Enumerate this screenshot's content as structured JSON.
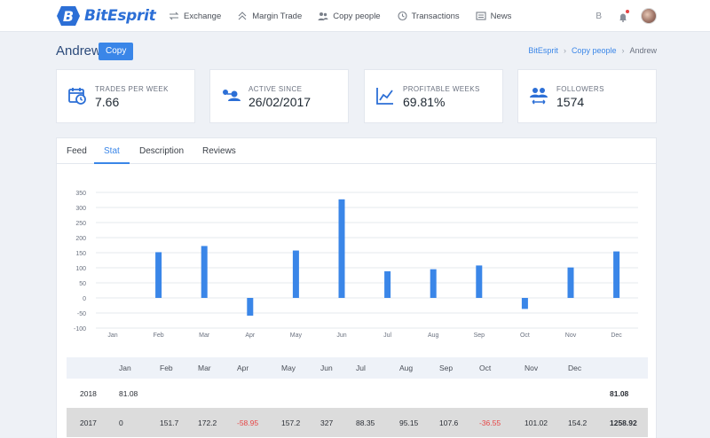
{
  "brand": {
    "name": "BitEsprit",
    "color": "#2c6fd6"
  },
  "nav": [
    {
      "label": "Exchange",
      "icon": "exchange-icon"
    },
    {
      "label": "Margin Trade",
      "icon": "margin-trade-icon"
    },
    {
      "label": "Copy people",
      "icon": "people-icon"
    },
    {
      "label": "Transactions",
      "icon": "history-icon"
    },
    {
      "label": "News",
      "icon": "news-icon"
    }
  ],
  "header_right": {
    "currency_symbol": "B"
  },
  "profile": {
    "name": "Andrew",
    "copy_label": "Copy"
  },
  "breadcrumb": [
    "BitEsprit",
    "Copy people",
    "Andrew"
  ],
  "stats": [
    {
      "label": "TRADES PER WEEK",
      "value": "7.66",
      "icon": "calendar-clock-icon"
    },
    {
      "label": "ACTIVE SINCE",
      "value": "26/02/2017",
      "icon": "user-connect-icon"
    },
    {
      "label": "PROFITABLE WEEKS",
      "value": "69.81%",
      "icon": "line-chart-icon"
    },
    {
      "label": "FOLLOWERS",
      "value": "1574",
      "icon": "followers-icon"
    }
  ],
  "tabs": [
    "Feed",
    "Stat",
    "Description",
    "Reviews"
  ],
  "active_tab": "Stat",
  "chart_data": {
    "type": "bar",
    "categories": [
      "Jan",
      "Feb",
      "Mar",
      "Apr",
      "May",
      "Jun",
      "Jul",
      "Aug",
      "Sep",
      "Oct",
      "Nov",
      "Dec"
    ],
    "values": [
      0,
      151.7,
      172.2,
      -58.95,
      157.2,
      327,
      88.35,
      95.15,
      107.6,
      -36.55,
      101.02,
      154.2
    ],
    "yticks": [
      350,
      300,
      250,
      200,
      150,
      100,
      50,
      0,
      -50,
      -100
    ],
    "ylim": [
      -100,
      350
    ],
    "grid": true,
    "bar_color": "#3a86e8"
  },
  "table": {
    "columns": [
      "",
      "Jan",
      "Feb",
      "Mar",
      "Apr",
      "May",
      "Jun",
      "Jul",
      "Aug",
      "Sep",
      "Oct",
      "Nov",
      "Dec",
      ""
    ],
    "rows": [
      {
        "year": "2018",
        "cells": [
          "81.08",
          "",
          "",
          "",
          "",
          "",
          "",
          "",
          "",
          "",
          "",
          ""
        ],
        "total": "81.08"
      },
      {
        "year": "2017",
        "cells": [
          "0",
          "151.7",
          "172.2",
          "-58.95",
          "157.2",
          "327",
          "88.35",
          "95.15",
          "107.6",
          "-36.55",
          "101.02",
          "154.2"
        ],
        "total": "1258.92"
      }
    ]
  }
}
